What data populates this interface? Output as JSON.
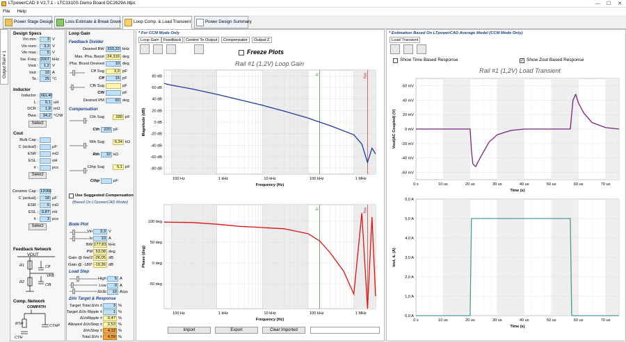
{
  "window": {
    "title": "LTpowerCAD II V2.7.1 - LTC3310S Demo Board DC2629A.lttpc",
    "btn_min": "—",
    "btn_max": "☐",
    "btn_close": "✕"
  },
  "menu": {
    "file": "File",
    "help": "Help"
  },
  "tabs": [
    "Power Stage Design",
    "Loss Estimate & Break Down",
    "Loop Comp. & Load Transient",
    "Power Design Summary"
  ],
  "side_tab": "Output Rail # 1",
  "design_specs": {
    "title": "Design Specs",
    "rows": [
      {
        "label": "Vin min :",
        "value": "3",
        "unit": "V"
      },
      {
        "label": "Vin nom :",
        "value": "3,3",
        "unit": "V"
      },
      {
        "label": "Vin max :",
        "value": "5",
        "unit": "V"
      },
      {
        "label": "Sw. Freq :",
        "value": "2007",
        "unit": "kHz"
      },
      {
        "label": "Vout :",
        "value": "1,2",
        "unit": "V"
      },
      {
        "label": "Iout :",
        "value": "10",
        "unit": "A"
      },
      {
        "label": "Ta :",
        "value": "25",
        "unit": "°C"
      }
    ]
  },
  "inductor": {
    "title": "Inductor",
    "rows": [
      {
        "label": "Inductor :",
        "value": "XEL40",
        "unit": ""
      },
      {
        "label": "L :",
        "value": "0,1",
        "unit": "uH"
      },
      {
        "label": "DCR :",
        "value": "1,8",
        "unit": "mΩ"
      },
      {
        "label": "Θwa :",
        "value": "34,2",
        "unit": "°C/W"
      }
    ],
    "select": "Select"
  },
  "cout": {
    "title": "Cout",
    "rows": [
      {
        "label": "Bulk Cap :",
        "value": "",
        "unit": ""
      },
      {
        "label": "C (actual) :",
        "value": "",
        "unit": "µF"
      },
      {
        "label": "ESR :",
        "value": "",
        "unit": "mΩ"
      },
      {
        "label": "ESL :",
        "value": "",
        "unit": "nH"
      },
      {
        "label": "# :",
        "value": "",
        "unit": "pcs"
      }
    ],
    "select": "Select",
    "rows2": [
      {
        "label": "Ceramic Cap :",
        "value": "12066",
        "unit": ""
      },
      {
        "label": "C (actual) :",
        "value": "18",
        "unit": "µF"
      },
      {
        "label": "ESR :",
        "value": "6",
        "unit": "mΩ"
      },
      {
        "label": "ESL :",
        "value": "0,87",
        "unit": "nH"
      },
      {
        "label": "# :",
        "value": "3",
        "unit": "pcs"
      }
    ],
    "select2": "Select"
  },
  "feedback_network": {
    "title": "Feedback Network",
    "vout": "VOUT",
    "r1": "R1",
    "r2": "R2",
    "cff": "Cff",
    "cflt": "Cflt",
    "vfb": "VFB"
  },
  "comp_network": {
    "title": "Comp. Network",
    "node": "COMP/ITH",
    "rth": "RTH",
    "cth": "CTH",
    "cthp": "CTHP"
  },
  "loop_gain": {
    "title": "Loop Gain",
    "feedback_divider": "Feedback Divider",
    "fd_rows": [
      {
        "label": "Desired BW",
        "value": "333,33",
        "unit": "kHz",
        "style": "b"
      },
      {
        "label": "Max. Pha. Boost",
        "value": "24,316",
        "unit": "deg",
        "style": "y"
      },
      {
        "label": "Pha. Boost Desired",
        "value": "10",
        "unit": "deg",
        "style": "b"
      },
      {
        "label": "Cff Sug",
        "value": "3,9",
        "unit": "pF",
        "style": "y"
      },
      {
        "label": "Cff",
        "value": "15",
        "unit": "pF",
        "style": "b"
      },
      {
        "label": "Cflt Sug",
        "value": "",
        "unit": "pF",
        "style": "y"
      },
      {
        "label": "Cflt",
        "value": "",
        "unit": "pF",
        "style": "b"
      },
      {
        "label": "Desired PM",
        "value": "60",
        "unit": "deg",
        "style": "b"
      }
    ],
    "compensation": "Compensation",
    "comp_rows": [
      {
        "label": "Cth Sug",
        "value": "330",
        "unit": "pF",
        "style": "y"
      },
      {
        "label": "Cth",
        "value": "220",
        "unit": "pF",
        "style": "b"
      },
      {
        "label": "Rth Sug",
        "value": "6,34",
        "unit": "kΩ",
        "style": "y"
      },
      {
        "label": "Rth",
        "value": "10",
        "unit": "kΩ",
        "style": "b"
      },
      {
        "label": "Cthp Sug",
        "value": "5,1",
        "unit": "pF",
        "style": "y"
      },
      {
        "label": "Cthp",
        "value": "",
        "unit": "pF",
        "style": "b"
      }
    ],
    "use_suggested": "Use Suggested Compensation",
    "based_on": "(Based On LTpowerCAD Model)",
    "bode_plot": "Bode Plot",
    "bode_rows": [
      {
        "label": "Vin",
        "value": "3,3",
        "unit": "V",
        "style": "b"
      },
      {
        "label": "Io",
        "value": "10",
        "unit": "A",
        "style": "b"
      },
      {
        "label": "BW",
        "value": "177,83",
        "unit": "kHz",
        "style": "y"
      },
      {
        "label": "PM",
        "value": "53,08",
        "unit": "deg",
        "style": "y"
      },
      {
        "label": "Gain @ fsw/2",
        "value": "-26,05",
        "unit": "dB",
        "style": "y"
      },
      {
        "label": "Gain @ -180°",
        "value": "-19,36",
        "unit": "dB",
        "style": "y"
      }
    ],
    "load_step": "Load Step",
    "ls_rows": [
      {
        "label": "High",
        "value": "5",
        "unit": "A",
        "style": "b"
      },
      {
        "label": "Low",
        "value": "0",
        "unit": "A",
        "style": "b"
      },
      {
        "label": "ΔI/Δt",
        "value": "10",
        "unit": "A/µs",
        "style": "b"
      }
    ],
    "dvo": "ΔVo Target & Response",
    "dvo_rows": [
      {
        "label": "Target Total ΔVo ±",
        "value": "3",
        "unit": "%",
        "style": "b"
      },
      {
        "label": "Target ΔVo Ripple ±",
        "value": "1",
        "unit": "%",
        "style": "b"
      },
      {
        "label": "ΔVoRipple ±",
        "value": "0,47",
        "unit": "%",
        "style": "y"
      },
      {
        "label": "Allowed ΔVoStep ±",
        "value": "2,53",
        "unit": "%",
        "style": "y"
      },
      {
        "label": "ΔVoStep ±",
        "value": "4,12",
        "unit": "%",
        "style": "o"
      },
      {
        "label": "Total ΔVo ±",
        "value": "4,59",
        "unit": "%",
        "style": "o"
      }
    ]
  },
  "ccm_left": "* For CCM Mode Only",
  "ccm_right": "* Estimation Based On LTpowerCAD Average Model (CCM Mode Only)",
  "mid_tabs": [
    "Loop Gain",
    "Feedback",
    "Control To Output",
    "Compensator",
    "Output Z"
  ],
  "freeze_plots": "Freeze Plots",
  "mag_chart": {
    "title": "Rail #1 (1,2V) Loop Gain",
    "ylabel": "Magnitude (dB)",
    "xlabel": "Frequency (Hz)",
    "yticks": [
      "80 dB",
      "60 dB",
      "40 dB",
      "20 dB",
      "0 dB",
      "-20 dB",
      "-40 dB",
      "-60 dB",
      "-80 dB"
    ],
    "xticks": [
      "100 Hz",
      "1 kHz",
      "10 kHz",
      "100 kHz",
      "1 MHz"
    ],
    "fc_label": "fc",
    "fsw_label": "fsw",
    "color": "#1f3a9f"
  },
  "phase_chart": {
    "ylabel": "Phase (deg)",
    "xlabel": "Frequency (Hz)",
    "yticks": [
      "100 deg",
      "50 deg",
      "0 deg",
      "-50 deg"
    ],
    "xticks": [
      "100 Hz",
      "1 kHz",
      "10 kHz",
      "100 kHz",
      "1 MHz"
    ],
    "fc_label": "fc",
    "fsw_label": "fsw",
    "color": "#e01010"
  },
  "buttons": {
    "import": "Import",
    "export": "Export",
    "clear": "Clear Imported"
  },
  "right_tab": "Load Transient",
  "show_time": "Show Time Based Response",
  "show_zout": "Show Zout Based Response",
  "vout_chart": {
    "title": "Rail #1 (1,2V) Load Transient",
    "ylabel": "Vout(AC Coupled) (V)",
    "xlabel": "Time (s)",
    "yticks": [
      "60 mV",
      "40 mV",
      "20 mV",
      "0 mV",
      "-20 mV",
      "-40 mV",
      "-60 mV"
    ],
    "xticks": [
      "0 s",
      "10 us",
      "20 us",
      "30 us",
      "40 us",
      "50 us",
      "60 us",
      "70 us"
    ],
    "color": "#7b1f7b"
  },
  "iout_chart": {
    "ylabel": "Iout, iL (A)",
    "xlabel": "Time (s)",
    "yticks": [
      "6,0 A",
      "5,0 A",
      "4,0 A",
      "3,0 A",
      "2,0 A",
      "1,0 A",
      "0,0 A"
    ],
    "xticks": [
      "0 s",
      "10 us",
      "20 us",
      "30 us",
      "40 us",
      "50 us",
      "60 us",
      "70 us"
    ],
    "color": "#4a9a9a"
  },
  "chart_data": [
    {
      "type": "line",
      "title": "Rail #1 (1,2V) Loop Gain",
      "xlabel": "Frequency (Hz)",
      "ylabel": "Magnitude (dB)",
      "xscale": "log",
      "xlim": [
        70,
        3000000
      ],
      "ylim": [
        -90,
        90
      ],
      "series": [
        {
          "x": [
            70,
            100,
            300,
            1000,
            3000,
            10000,
            30000,
            100000,
            178000,
            300000,
            1000000,
            1500000,
            2000000,
            2500000,
            3000000
          ],
          "y": [
            67,
            64,
            57,
            48,
            39,
            29,
            19,
            7,
            0,
            -6,
            -22,
            -38,
            -70,
            -45,
            -55
          ]
        }
      ]
    },
    {
      "type": "line",
      "xlabel": "Frequency (Hz)",
      "ylabel": "Phase (deg)",
      "xscale": "log",
      "xlim": [
        70,
        3000000
      ],
      "ylim": [
        -110,
        140
      ],
      "series": [
        {
          "x": [
            70,
            300,
            1000,
            3000,
            10000,
            30000,
            100000,
            178000,
            300000,
            600000,
            1000000,
            1500000,
            2000000,
            2500000,
            3000000
          ],
          "y": [
            98,
            97,
            93,
            88,
            85,
            82,
            70,
            53,
            25,
            -20,
            -75,
            120,
            -110,
            110,
            -80
          ]
        }
      ]
    },
    {
      "type": "line",
      "title": "Rail #1 (1,2V) Load Transient",
      "xlabel": "Time (s)",
      "ylabel": "Vout(AC Coupled) (V)",
      "xlim": [
        0,
        75
      ],
      "ylim": [
        -70,
        70
      ],
      "series": [
        {
          "name": "Vout",
          "x": [
            0,
            20,
            20.5,
            21,
            22,
            24,
            27,
            30,
            35,
            40,
            50,
            57,
            58,
            59,
            60,
            62,
            65,
            70,
            75
          ],
          "y": [
            0,
            0,
            -30,
            -48,
            -52,
            -38,
            -18,
            -8,
            -2,
            0,
            0,
            0,
            40,
            48,
            36,
            22,
            9,
            2,
            0
          ]
        }
      ]
    },
    {
      "type": "line",
      "xlabel": "Time (s)",
      "ylabel": "Iout, iL (A)",
      "xlim": [
        0,
        75
      ],
      "ylim": [
        0,
        6
      ],
      "series": [
        {
          "name": "Iout",
          "x": [
            0,
            20,
            20.5,
            57,
            57.5,
            75
          ],
          "y": [
            0,
            0,
            5,
            5,
            0,
            0
          ]
        }
      ]
    }
  ]
}
